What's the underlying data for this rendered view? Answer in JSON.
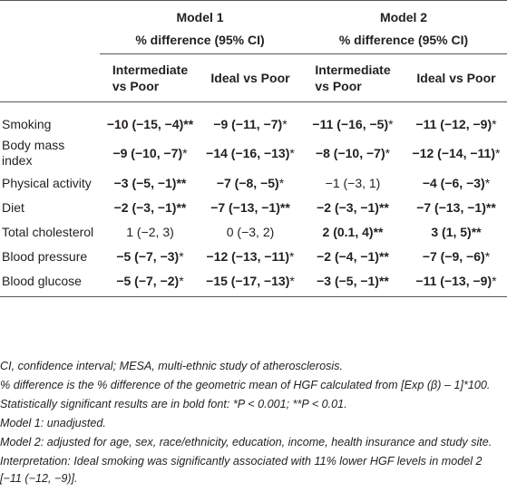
{
  "header": {
    "model1": "Model 1",
    "model2": "Model 2",
    "pct1": "% difference (95% CI)",
    "pct2": "% difference (95% CI)",
    "sub": [
      "Intermediate vs Poor",
      "Ideal vs Poor",
      "Intermediate vs Poor",
      "Ideal vs Poor"
    ],
    "sub_lines": [
      [
        "Intermediate",
        "vs Poor"
      ],
      [
        "Ideal vs Poor"
      ],
      [
        "Intermediate",
        "vs Poor"
      ],
      [
        "Ideal vs Poor"
      ]
    ]
  },
  "rows": [
    {
      "label": [
        "Smoking"
      ],
      "cells": [
        {
          "v": "−10 (−15, −4)",
          "m": "**",
          "bold": true
        },
        {
          "v": "−9 (−11, −7)",
          "m": "*",
          "bold": true
        },
        {
          "v": "−11 (−16, −5)",
          "m": "*",
          "bold": true
        },
        {
          "v": "−11 (−12, −9)",
          "m": "*",
          "bold": true
        }
      ]
    },
    {
      "label": [
        "Body mass",
        "index"
      ],
      "cells": [
        {
          "v": "−9 (−10, −7)",
          "m": "*",
          "bold": true
        },
        {
          "v": "−14 (−16, −13)",
          "m": "*",
          "bold": true
        },
        {
          "v": "−8 (−10, −7)",
          "m": "*",
          "bold": true
        },
        {
          "v": "−12 (−14, −11)",
          "m": "*",
          "bold": true
        }
      ]
    },
    {
      "label": [
        "Physical activity"
      ],
      "cells": [
        {
          "v": "−3 (−5, −1)",
          "m": "**",
          "bold": true
        },
        {
          "v": "−7 (−8, −5)",
          "m": "*",
          "bold": true
        },
        {
          "v": "−1 (−3, 1)",
          "m": "",
          "bold": false
        },
        {
          "v": "−4 (−6, −3)",
          "m": "*",
          "bold": true
        }
      ]
    },
    {
      "label": [
        "Diet"
      ],
      "cells": [
        {
          "v": "−2 (−3, −1)",
          "m": "**",
          "bold": true
        },
        {
          "v": "−7 (−13, −1)",
          "m": "**",
          "bold": true
        },
        {
          "v": "−2 (−3, −1)",
          "m": "**",
          "bold": true
        },
        {
          "v": "−7 (−13, −1)",
          "m": "**",
          "bold": true
        }
      ]
    },
    {
      "label": [
        "Total cholesterol"
      ],
      "cells": [
        {
          "v": "1 (−2, 3)",
          "m": "",
          "bold": false
        },
        {
          "v": "0 (−3, 2)",
          "m": "",
          "bold": false
        },
        {
          "v": "2 (0.1, 4)",
          "m": "**",
          "bold": true
        },
        {
          "v": "3 (1, 5)",
          "m": "**",
          "bold": true
        }
      ]
    },
    {
      "label": [
        "Blood pressure"
      ],
      "cells": [
        {
          "v": "−5 (−7, −3)",
          "m": "*",
          "bold": true
        },
        {
          "v": "−12 (−13, −11)",
          "m": "*",
          "bold": true
        },
        {
          "v": "−2 (−4, −1)",
          "m": "**",
          "bold": true
        },
        {
          "v": "−7 (−9, −6)",
          "m": "*",
          "bold": true
        }
      ]
    },
    {
      "label": [
        "Blood glucose"
      ],
      "cells": [
        {
          "v": "−5 (−7, −2)",
          "m": "*",
          "bold": true
        },
        {
          "v": "−15 (−17, −13)",
          "m": "*",
          "bold": true
        },
        {
          "v": "−3 (−5, −1)",
          "m": "**",
          "bold": true
        },
        {
          "v": "−11 (−13, −9)",
          "m": "*",
          "bold": true
        }
      ]
    }
  ],
  "notes": [
    "CI, confidence interval; MESA, multi-ethnic study of atherosclerosis.",
    "% difference is the % difference of the geometric mean of HGF calculated from [Exp (β) – 1]*100.",
    "Statistically significant results are in bold font: *P < 0.001; **P < 0.01.",
    "Model 1: unadjusted.",
    "Model 2: adjusted for age, sex, race/ethnicity, education, income, health insurance and study site.",
    "Interpretation: Ideal smoking was significantly associated with 11% lower HGF levels in model 2 [−11 (−12, −9)]."
  ]
}
